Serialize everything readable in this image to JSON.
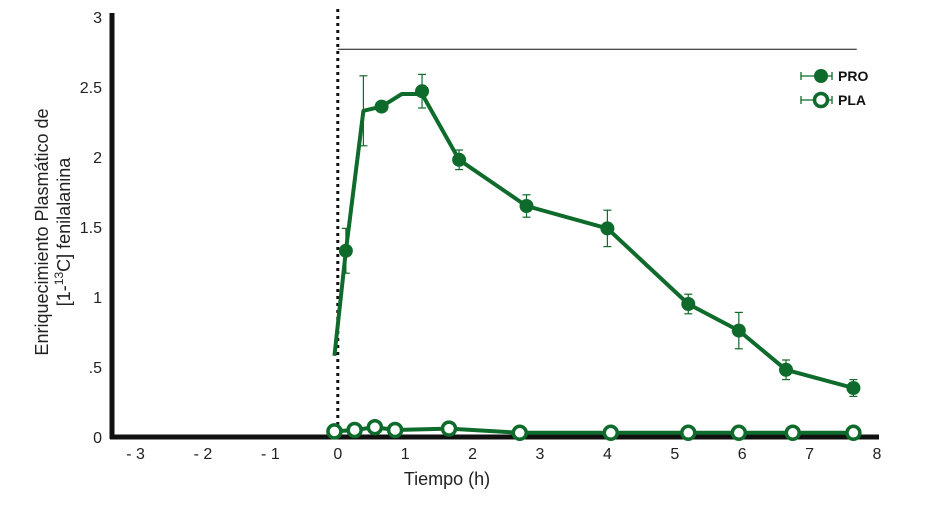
{
  "colors": {
    "series": "#0f6b2b",
    "axis": "#111111",
    "text": "#222222"
  },
  "chart_data": {
    "type": "line",
    "xlabel": "Tiempo (h)",
    "ylabel_line1": "Enriquecimiento Plasmático de",
    "ylabel_line2_prefix": "[1-",
    "ylabel_line2_sup": "13",
    "ylabel_line2_suffix": "C] fenilalanina",
    "xlim": [
      -3.35,
      8
    ],
    "ylim": [
      0,
      3
    ],
    "x_ticks": [
      -3,
      -2,
      -1,
      0,
      1,
      2,
      3,
      4,
      5,
      6,
      7,
      8
    ],
    "x_tick_labels": [
      "- 3",
      "- 2",
      "- 1",
      "0",
      "1",
      "2",
      "3",
      "4",
      "5",
      "6",
      "7",
      "8"
    ],
    "y_ticks": [
      0,
      0.5,
      1,
      1.5,
      2,
      2.5,
      3
    ],
    "y_tick_labels": [
      "0",
      ".5",
      "1",
      "1.5",
      "2",
      "2.5",
      "3"
    ],
    "vertical_dotted_line_x": 0,
    "reference_line": {
      "y": 2.77,
      "x_start": 0,
      "x_end": 7.7
    },
    "legend_position": "top-right",
    "series": [
      {
        "name": "PRO",
        "marker": "filled-circle",
        "line_x": [
          -0.05,
          0.12,
          0.38,
          0.65,
          0.95,
          1.25,
          1.8,
          2.8,
          4.0,
          5.2,
          5.95,
          6.65,
          7.65
        ],
        "line_y": [
          0.58,
          1.33,
          2.33,
          2.36,
          2.45,
          2.45,
          1.98,
          1.65,
          1.49,
          0.95,
          0.76,
          0.48,
          0.35
        ],
        "points": [
          {
            "x": 0.12,
            "y": 1.33,
            "err": 0.16
          },
          {
            "x": 0.65,
            "y": 2.36,
            "err": 0.0
          },
          {
            "x": 1.25,
            "y": 2.47,
            "err": 0.12
          },
          {
            "x": 1.8,
            "y": 1.98,
            "err": 0.07
          },
          {
            "x": 2.8,
            "y": 1.65,
            "err": 0.08
          },
          {
            "x": 4.0,
            "y": 1.49,
            "err": 0.13
          },
          {
            "x": 5.2,
            "y": 0.95,
            "err": 0.07
          },
          {
            "x": 5.95,
            "y": 0.76,
            "err": 0.13
          },
          {
            "x": 6.65,
            "y": 0.48,
            "err": 0.07
          },
          {
            "x": 7.65,
            "y": 0.35,
            "err": 0.06
          }
        ],
        "extra_error_bars": [
          {
            "x": 0.38,
            "y": 2.33,
            "err_up": 0.25,
            "err_down": 0.25
          }
        ]
      },
      {
        "name": "PLA",
        "marker": "open-circle",
        "line_x": [
          -0.05,
          0.25,
          0.55,
          0.85,
          1.65,
          2.7,
          4.05,
          5.2,
          5.95,
          6.75,
          7.65
        ],
        "line_y": [
          0.04,
          0.05,
          0.07,
          0.05,
          0.06,
          0.03,
          0.03,
          0.03,
          0.03,
          0.03,
          0.03
        ],
        "points": [
          {
            "x": -0.05,
            "y": 0.04,
            "err": 0
          },
          {
            "x": 0.25,
            "y": 0.05,
            "err": 0
          },
          {
            "x": 0.55,
            "y": 0.07,
            "err": 0
          },
          {
            "x": 0.85,
            "y": 0.05,
            "err": 0
          },
          {
            "x": 1.65,
            "y": 0.06,
            "err": 0
          },
          {
            "x": 2.7,
            "y": 0.03,
            "err": 0
          },
          {
            "x": 4.05,
            "y": 0.03,
            "err": 0
          },
          {
            "x": 5.2,
            "y": 0.03,
            "err": 0
          },
          {
            "x": 5.95,
            "y": 0.03,
            "err": 0
          },
          {
            "x": 6.75,
            "y": 0.03,
            "err": 0
          },
          {
            "x": 7.65,
            "y": 0.03,
            "err": 0
          }
        ]
      }
    ]
  }
}
